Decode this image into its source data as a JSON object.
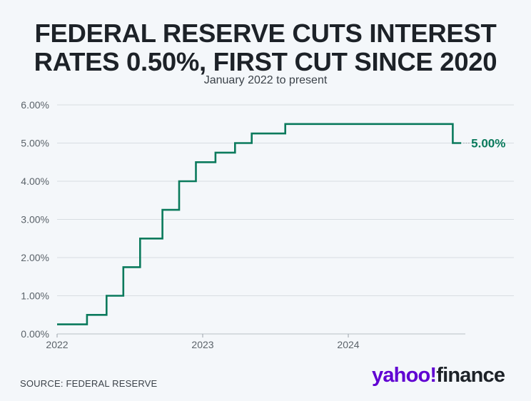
{
  "header": {
    "title_line1": "FEDERAL RESERVE CUTS INTEREST",
    "title_line2": "RATES 0.50%, FIRST CUT SINCE 2020",
    "subtitle": "January 2022 to present"
  },
  "footer": {
    "source": "SOURCE: FEDERAL RESERVE",
    "logo_yahoo": "yahoo!",
    "logo_finance": "finance"
  },
  "colors": {
    "line": "#0a7a5c",
    "grid": "#d8dde2",
    "axis_text": "#5b636a",
    "background": "#f4f7fa"
  },
  "chart_data": {
    "type": "line",
    "step": true,
    "title": "FEDERAL RESERVE CUTS INTEREST RATES 0.50%, FIRST CUT SINCE 2020",
    "subtitle": "January 2022 to present",
    "xlabel": "",
    "ylabel": "",
    "xlim": [
      "2022-01-01",
      "2024-11-05"
    ],
    "ylim": [
      0,
      6
    ],
    "x_ticks": [
      "2022",
      "2023",
      "2024"
    ],
    "y_ticks": [
      "0.00%",
      "1.00%",
      "2.00%",
      "3.00%",
      "4.00%",
      "5.00%",
      "6.00%"
    ],
    "grid": "horizontal",
    "end_label": "5.00%",
    "series": [
      {
        "points": [
          {
            "date": "2022-01-01",
            "rate": 0.25
          },
          {
            "date": "2022-03-17",
            "rate": 0.5
          },
          {
            "date": "2022-05-05",
            "rate": 1.0
          },
          {
            "date": "2022-06-16",
            "rate": 1.75
          },
          {
            "date": "2022-07-28",
            "rate": 2.5
          },
          {
            "date": "2022-09-22",
            "rate": 3.25
          },
          {
            "date": "2022-11-03",
            "rate": 4.0
          },
          {
            "date": "2022-12-15",
            "rate": 4.5
          },
          {
            "date": "2023-02-02",
            "rate": 4.75
          },
          {
            "date": "2023-03-23",
            "rate": 5.0
          },
          {
            "date": "2023-05-04",
            "rate": 5.25
          },
          {
            "date": "2023-07-27",
            "rate": 5.5
          },
          {
            "date": "2024-09-19",
            "rate": 5.0
          },
          {
            "date": "2024-10-10",
            "rate": 5.0
          }
        ]
      }
    ]
  }
}
